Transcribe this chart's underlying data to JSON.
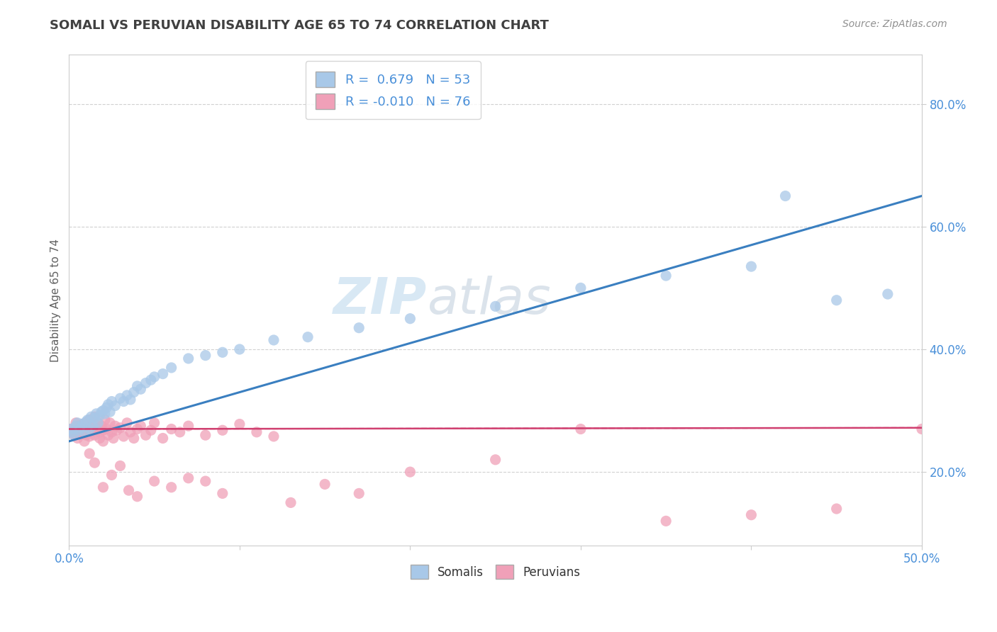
{
  "title": "SOMALI VS PERUVIAN DISABILITY AGE 65 TO 74 CORRELATION CHART",
  "source": "Source: ZipAtlas.com",
  "ylabel_label": "Disability Age 65 to 74",
  "xlim": [
    0.0,
    0.5
  ],
  "ylim": [
    0.08,
    0.88
  ],
  "somali_R": 0.679,
  "somali_N": 53,
  "peruvian_R": -0.01,
  "peruvian_N": 76,
  "somali_color": "#a8c8e8",
  "peruvian_color": "#f0a0b8",
  "somali_line_color": "#3a7fc0",
  "peruvian_line_color": "#d04070",
  "background_color": "#ffffff",
  "grid_color": "#cccccc",
  "watermark_zip": "ZIP",
  "watermark_atlas": "atlas",
  "title_color": "#404040",
  "source_color": "#909090",
  "tick_color": "#4a90d9",
  "ylabel_color": "#606060",
  "legend_text_color": "#4a90d9",
  "somali_x": [
    0.001,
    0.002,
    0.003,
    0.004,
    0.005,
    0.006,
    0.007,
    0.008,
    0.009,
    0.01,
    0.011,
    0.012,
    0.013,
    0.014,
    0.015,
    0.016,
    0.017,
    0.018,
    0.019,
    0.02,
    0.021,
    0.022,
    0.023,
    0.024,
    0.025,
    0.027,
    0.03,
    0.032,
    0.034,
    0.036,
    0.038,
    0.04,
    0.042,
    0.045,
    0.048,
    0.05,
    0.055,
    0.06,
    0.07,
    0.08,
    0.09,
    0.1,
    0.12,
    0.14,
    0.17,
    0.2,
    0.25,
    0.3,
    0.35,
    0.4,
    0.42,
    0.45,
    0.48
  ],
  "somali_y": [
    0.27,
    0.265,
    0.26,
    0.275,
    0.28,
    0.268,
    0.272,
    0.278,
    0.265,
    0.282,
    0.285,
    0.27,
    0.29,
    0.275,
    0.288,
    0.295,
    0.28,
    0.292,
    0.298,
    0.3,
    0.295,
    0.305,
    0.31,
    0.298,
    0.315,
    0.308,
    0.32,
    0.315,
    0.325,
    0.318,
    0.33,
    0.34,
    0.335,
    0.345,
    0.35,
    0.355,
    0.36,
    0.37,
    0.385,
    0.39,
    0.395,
    0.4,
    0.415,
    0.42,
    0.435,
    0.45,
    0.47,
    0.5,
    0.52,
    0.535,
    0.65,
    0.48,
    0.49
  ],
  "peruvian_x": [
    0.001,
    0.002,
    0.003,
    0.004,
    0.005,
    0.005,
    0.006,
    0.007,
    0.008,
    0.008,
    0.009,
    0.01,
    0.01,
    0.011,
    0.012,
    0.012,
    0.013,
    0.014,
    0.015,
    0.015,
    0.016,
    0.017,
    0.018,
    0.018,
    0.019,
    0.02,
    0.02,
    0.021,
    0.022,
    0.023,
    0.024,
    0.025,
    0.026,
    0.027,
    0.028,
    0.03,
    0.032,
    0.034,
    0.036,
    0.038,
    0.04,
    0.042,
    0.045,
    0.048,
    0.05,
    0.055,
    0.06,
    0.065,
    0.07,
    0.08,
    0.09,
    0.1,
    0.11,
    0.12,
    0.13,
    0.15,
    0.17,
    0.2,
    0.25,
    0.3,
    0.35,
    0.4,
    0.45,
    0.5,
    0.012,
    0.015,
    0.02,
    0.025,
    0.03,
    0.035,
    0.04,
    0.05,
    0.06,
    0.07,
    0.08,
    0.09
  ],
  "peruvian_y": [
    0.27,
    0.265,
    0.26,
    0.28,
    0.275,
    0.255,
    0.268,
    0.272,
    0.262,
    0.278,
    0.25,
    0.28,
    0.26,
    0.272,
    0.258,
    0.285,
    0.265,
    0.275,
    0.26,
    0.29,
    0.27,
    0.28,
    0.265,
    0.255,
    0.275,
    0.268,
    0.25,
    0.285,
    0.27,
    0.26,
    0.28,
    0.265,
    0.255,
    0.275,
    0.268,
    0.272,
    0.258,
    0.28,
    0.265,
    0.255,
    0.27,
    0.275,
    0.26,
    0.268,
    0.28,
    0.255,
    0.27,
    0.265,
    0.275,
    0.26,
    0.268,
    0.278,
    0.265,
    0.258,
    0.15,
    0.18,
    0.165,
    0.2,
    0.22,
    0.27,
    0.12,
    0.13,
    0.14,
    0.27,
    0.23,
    0.215,
    0.175,
    0.195,
    0.21,
    0.17,
    0.16,
    0.185,
    0.175,
    0.19,
    0.185,
    0.165
  ]
}
